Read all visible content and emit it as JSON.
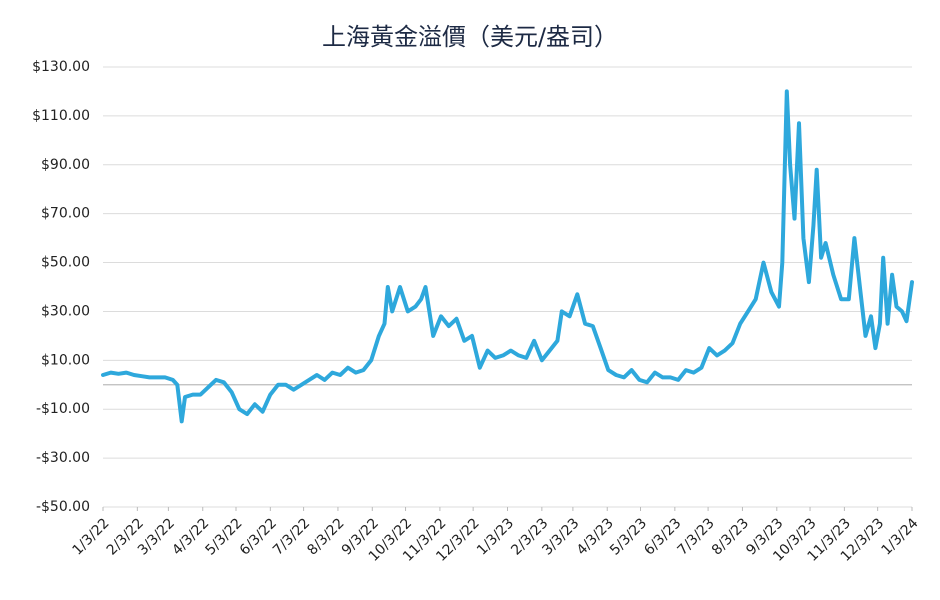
{
  "chart_data": {
    "type": "line",
    "title": "上海黃金溢價（美元/盎司）",
    "x": [
      "1/3/22",
      "1/10/22",
      "1/17/22",
      "1/24/22",
      "1/31/22",
      "2/7/22",
      "2/14/22",
      "2/21/22",
      "2/28/22",
      "3/7/22",
      "3/11/22",
      "3/15/22",
      "3/18/22",
      "3/25/22",
      "4/1/22",
      "4/8/22",
      "4/15/22",
      "4/22/22",
      "4/29/22",
      "5/6/22",
      "5/13/22",
      "5/20/22",
      "5/27/22",
      "6/3/22",
      "6/10/22",
      "6/17/22",
      "6/24/22",
      "7/1/22",
      "7/8/22",
      "7/15/22",
      "7/22/22",
      "7/29/22",
      "8/5/22",
      "8/12/22",
      "8/19/22",
      "8/26/22",
      "9/2/22",
      "9/9/22",
      "9/14/22",
      "9/17/22",
      "9/21/22",
      "9/28/22",
      "10/5/22",
      "10/12/22",
      "10/17/22",
      "10/21/22",
      "10/28/22",
      "11/4/22",
      "11/11/22",
      "11/18/22",
      "11/25/22",
      "12/2/22",
      "12/9/22",
      "12/16/22",
      "12/23/22",
      "12/30/22",
      "1/6/23",
      "1/13/23",
      "1/20/23",
      "1/27/23",
      "2/3/23",
      "2/10/23",
      "2/17/23",
      "2/21/23",
      "2/28/23",
      "3/7/23",
      "3/14/23",
      "3/21/23",
      "3/28/23",
      "4/4/23",
      "4/11/23",
      "4/18/23",
      "4/25/23",
      "5/2/23",
      "5/9/23",
      "5/16/23",
      "5/23/23",
      "5/30/23",
      "6/6/23",
      "6/13/23",
      "6/20/23",
      "6/27/23",
      "7/4/23",
      "7/11/23",
      "7/18/23",
      "7/25/23",
      "8/1/23",
      "8/8/23",
      "8/15/23",
      "8/22/23",
      "8/29/23",
      "9/5/23",
      "9/8/23",
      "9/12/23",
      "9/15/23",
      "9/19/23",
      "9/23/23",
      "9/27/23",
      "10/2/23",
      "10/6/23",
      "10/9/23",
      "10/13/23",
      "10/17/23",
      "10/24/23",
      "10/31/23",
      "11/7/23",
      "11/12/23",
      "11/17/23",
      "11/22/23",
      "11/27/23",
      "12/1/23",
      "12/5/23",
      "12/8/23",
      "12/12/23",
      "12/16/23",
      "12/20/23",
      "12/25/23",
      "12/29/23",
      "1/3/24"
    ],
    "series": [
      {
        "name": "上海黃金溢價",
        "color": "#2ea8dc",
        "values": [
          4,
          5,
          4.5,
          5,
          4,
          3.5,
          3,
          3,
          3,
          2,
          0,
          -15,
          -5,
          -4,
          -4,
          -1,
          2,
          1,
          -3,
          -10,
          -12,
          -8,
          -11,
          -4,
          0,
          0,
          -2,
          0,
          2,
          4,
          2,
          5,
          4,
          7,
          5,
          6,
          10,
          20,
          25,
          40,
          30,
          40,
          30,
          32,
          35,
          40,
          20,
          28,
          24,
          27,
          18,
          20,
          7,
          14,
          11,
          12,
          14,
          12,
          11,
          18,
          10,
          14,
          18,
          30,
          28,
          37,
          25,
          24,
          15,
          6,
          4,
          3,
          6,
          2,
          1,
          5,
          3,
          3,
          2,
          6,
          5,
          7,
          15,
          12,
          14,
          17,
          25,
          30,
          35,
          50,
          38,
          32,
          50,
          120,
          90,
          68,
          107,
          60,
          42,
          65,
          88,
          52,
          58,
          45,
          35,
          35,
          60,
          40,
          20,
          28,
          15,
          25,
          52,
          25,
          45,
          32,
          30,
          26,
          42
        ]
      }
    ],
    "xticks": [
      "1/3/22",
      "2/3/22",
      "3/3/22",
      "4/3/22",
      "5/3/22",
      "6/3/22",
      "7/3/22",
      "8/3/22",
      "9/3/22",
      "10/3/22",
      "11/3/22",
      "12/3/22",
      "1/3/23",
      "2/3/23",
      "3/3/23",
      "4/3/23",
      "5/3/23",
      "6/3/23",
      "7/3/23",
      "8/3/23",
      "9/3/23",
      "10/3/23",
      "11/3/23",
      "12/3/23",
      "1/3/24"
    ],
    "ylim": [
      -50,
      130
    ],
    "yticks": [
      {
        "value": -50,
        "label": "-$50.00"
      },
      {
        "value": -30,
        "label": "-$30.00"
      },
      {
        "value": -10,
        "label": "-$10.00"
      },
      {
        "value": 10,
        "label": "$10.00"
      },
      {
        "value": 30,
        "label": "$30.00"
      },
      {
        "value": 50,
        "label": "$50.00"
      },
      {
        "value": 70,
        "label": "$70.00"
      },
      {
        "value": 90,
        "label": "$90.00"
      },
      {
        "value": 110,
        "label": "$110.00"
      },
      {
        "value": 130,
        "label": "$130.00"
      }
    ],
    "grid": true
  }
}
